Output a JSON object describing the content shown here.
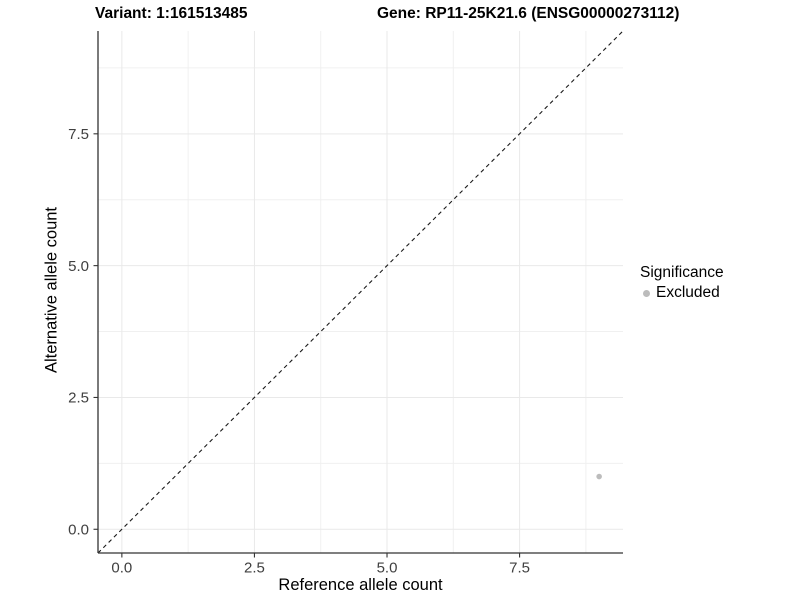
{
  "titles": {
    "variant": "Variant: 1:161513485",
    "gene": "Gene: RP11-25K21.6 (ENSG00000273112)"
  },
  "axes": {
    "x_label": "Reference allele count",
    "y_label": "Alternative allele count",
    "x_tick_labels": [
      "0.0",
      "2.5",
      "5.0",
      "7.5"
    ],
    "y_tick_labels": [
      "0.0",
      "2.5",
      "5.0",
      "7.5"
    ]
  },
  "legend": {
    "title": "Significance",
    "items": [
      {
        "label": "Excluded",
        "color": "#bcbcbc",
        "marker": "dot-icon"
      }
    ]
  },
  "colors": {
    "point": "#bcbcbc",
    "grid_major": "#e9e9e9",
    "grid_minor": "#f0f0f0",
    "axis": "#333333",
    "reference_line": "#1a1a1a"
  },
  "chart_data": {
    "type": "scatter",
    "title_left": "Variant: 1:161513485",
    "title_right": "Gene: RP11-25K21.6 (ENSG00000273112)",
    "xlabel": "Reference allele count",
    "ylabel": "Alternative allele count",
    "xlim": [
      -0.45,
      9.45
    ],
    "ylim": [
      -0.45,
      9.45
    ],
    "x_major_ticks": [
      0,
      2.5,
      5,
      7.5
    ],
    "y_major_ticks": [
      0,
      2.5,
      5,
      7.5
    ],
    "x_minor_ticks": [
      1.25,
      3.75,
      6.25,
      8.75
    ],
    "y_minor_ticks": [
      1.25,
      3.75,
      6.25,
      8.75
    ],
    "grid": true,
    "legend_position": "right",
    "series": [
      {
        "name": "Excluded",
        "color": "#bcbcbc",
        "points": [
          {
            "x": 9,
            "y": 1
          }
        ]
      }
    ],
    "reference_line": {
      "type": "identity",
      "style": "dashed",
      "slope": 1,
      "intercept": 0
    }
  }
}
